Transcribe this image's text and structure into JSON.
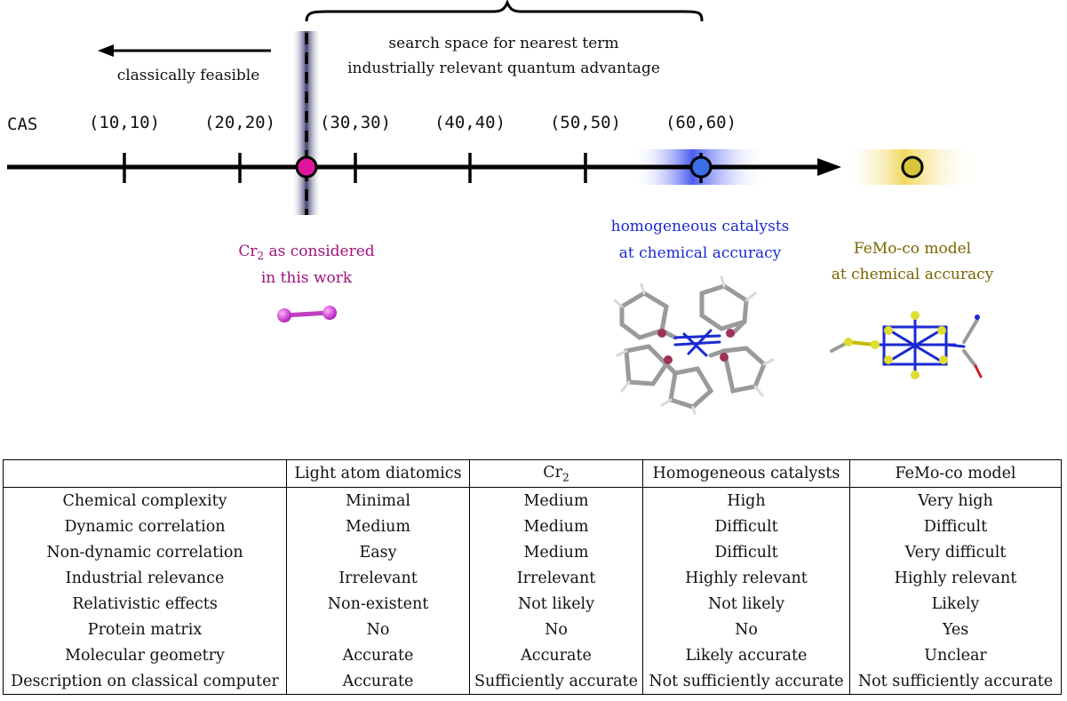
{
  "timeline": {
    "brace_label_line1": "search space for nearest term",
    "brace_label_line2": "industrially relevant quantum advantage",
    "classical_label": "classically feasible",
    "axis_label": "CAS",
    "ticks": [
      "(10,10)",
      "(20,20)",
      "(30,30)",
      "(40,40)",
      "(50,50)",
      "(60,60)"
    ],
    "cr2_label_line1": "Cr",
    "cr2_label_sub": "2",
    "cr2_label_rest": " as considered",
    "cr2_label_line2": "in this work",
    "homog_label_line1": "homogeneous catalysts",
    "homog_label_line2": "at chemical accuracy",
    "femo_label_line1": "FeMo-co model",
    "femo_label_line2": "at chemical accuracy"
  },
  "colors": {
    "cr2": "#e0159e",
    "homog": "#3a6de8",
    "femo": "#d8c43a"
  },
  "table": {
    "headers": [
      "",
      "Light atom diatomics",
      "Cr2",
      "Homogeneous catalysts",
      "FeMo-co model"
    ],
    "rows": [
      [
        "Chemical complexity",
        "Minimal",
        "Medium",
        "High",
        "Very high"
      ],
      [
        "Dynamic correlation",
        "Medium",
        "Medium",
        "Difficult",
        "Difficult"
      ],
      [
        "Non-dynamic correlation",
        "Easy",
        "Medium",
        "Difficult",
        "Very difficult"
      ],
      [
        "Industrial relevance",
        "Irrelevant",
        "Irrelevant",
        "Highly relevant",
        "Highly relevant"
      ],
      [
        "Relativistic effects",
        "Non-existent",
        "Not likely",
        "Not likely",
        "Likely"
      ],
      [
        "Protein matrix",
        "No",
        "No",
        "No",
        "Yes"
      ],
      [
        "Molecular geometry",
        "Accurate",
        "Accurate",
        "Likely accurate",
        "Unclear"
      ],
      [
        "Description on classical computer",
        "Accurate",
        "Sufficiently accurate",
        "Not sufficiently accurate",
        "Not sufficiently accurate"
      ]
    ]
  }
}
